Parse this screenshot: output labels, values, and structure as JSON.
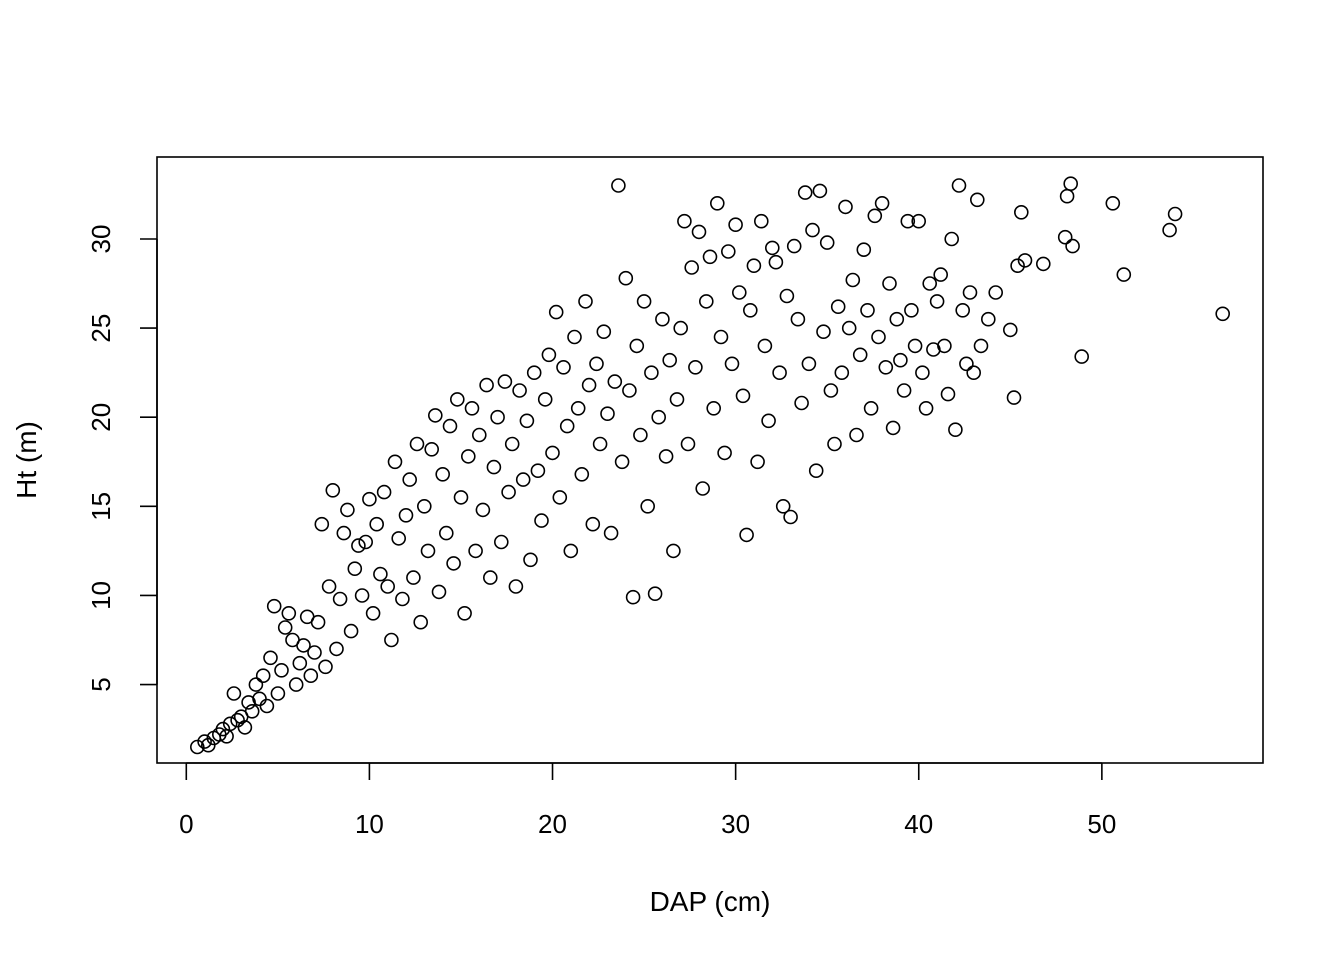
{
  "chart_data": {
    "type": "scatter",
    "title": "",
    "xlabel": "DAP (cm)",
    "ylabel": "Ht (m)",
    "xlim": [
      -1.6,
      58.8
    ],
    "ylim": [
      0.6,
      34.6
    ],
    "x_ticks": [
      0,
      10,
      20,
      30,
      40,
      50
    ],
    "y_ticks": [
      5,
      10,
      15,
      20,
      25,
      30
    ],
    "grid": false,
    "legend": "none",
    "marker": "open-circle",
    "color": "#000000",
    "points_note": "",
    "series": [
      {
        "points": [
          [
            0.6,
            1.5
          ],
          [
            1.0,
            1.8
          ],
          [
            1.2,
            1.6
          ],
          [
            1.5,
            2.0
          ],
          [
            1.8,
            2.2
          ],
          [
            2.0,
            2.5
          ],
          [
            2.2,
            2.1
          ],
          [
            2.4,
            2.8
          ],
          [
            2.6,
            4.5
          ],
          [
            2.8,
            3.0
          ],
          [
            3.0,
            3.2
          ],
          [
            3.2,
            2.6
          ],
          [
            3.4,
            4.0
          ],
          [
            3.6,
            3.5
          ],
          [
            3.8,
            5.0
          ],
          [
            4.0,
            4.2
          ],
          [
            4.2,
            5.5
          ],
          [
            4.4,
            3.8
          ],
          [
            4.6,
            6.5
          ],
          [
            4.8,
            9.4
          ],
          [
            5.0,
            4.5
          ],
          [
            5.2,
            5.8
          ],
          [
            5.4,
            8.2
          ],
          [
            5.6,
            9.0
          ],
          [
            5.8,
            7.5
          ],
          [
            6.0,
            5.0
          ],
          [
            6.2,
            6.2
          ],
          [
            6.4,
            7.2
          ],
          [
            6.6,
            8.8
          ],
          [
            6.8,
            5.5
          ],
          [
            7.0,
            6.8
          ],
          [
            7.2,
            8.5
          ],
          [
            7.4,
            14.0
          ],
          [
            7.6,
            6.0
          ],
          [
            7.8,
            10.5
          ],
          [
            8.0,
            15.9
          ],
          [
            8.2,
            7.0
          ],
          [
            8.4,
            9.8
          ],
          [
            8.6,
            13.5
          ],
          [
            8.8,
            14.8
          ],
          [
            9.0,
            8.0
          ],
          [
            9.2,
            11.5
          ],
          [
            9.4,
            12.8
          ],
          [
            9.6,
            10.0
          ],
          [
            9.8,
            13.0
          ],
          [
            10.0,
            15.4
          ],
          [
            10.2,
            9.0
          ],
          [
            10.4,
            14.0
          ],
          [
            10.6,
            11.2
          ],
          [
            10.8,
            15.8
          ],
          [
            11.0,
            10.5
          ],
          [
            11.2,
            7.5
          ],
          [
            11.4,
            17.5
          ],
          [
            11.6,
            13.2
          ],
          [
            11.8,
            9.8
          ],
          [
            12.0,
            14.5
          ],
          [
            12.2,
            16.5
          ],
          [
            12.4,
            11.0
          ],
          [
            12.6,
            18.5
          ],
          [
            12.8,
            8.5
          ],
          [
            13.0,
            15.0
          ],
          [
            13.2,
            12.5
          ],
          [
            13.4,
            18.2
          ],
          [
            13.6,
            20.1
          ],
          [
            13.8,
            10.2
          ],
          [
            14.0,
            16.8
          ],
          [
            14.2,
            13.5
          ],
          [
            14.4,
            19.5
          ],
          [
            14.6,
            11.8
          ],
          [
            14.8,
            21.0
          ],
          [
            15.0,
            15.5
          ],
          [
            15.2,
            9.0
          ],
          [
            15.4,
            17.8
          ],
          [
            15.6,
            20.5
          ],
          [
            15.8,
            12.5
          ],
          [
            16.0,
            19.0
          ],
          [
            16.2,
            14.8
          ],
          [
            16.4,
            21.8
          ],
          [
            16.6,
            11.0
          ],
          [
            16.8,
            17.2
          ],
          [
            17.0,
            20.0
          ],
          [
            17.2,
            13.0
          ],
          [
            17.4,
            22.0
          ],
          [
            17.6,
            15.8
          ],
          [
            17.8,
            18.5
          ],
          [
            18.0,
            10.5
          ],
          [
            18.2,
            21.5
          ],
          [
            18.4,
            16.5
          ],
          [
            18.6,
            19.8
          ],
          [
            18.8,
            12.0
          ],
          [
            19.0,
            22.5
          ],
          [
            19.2,
            17.0
          ],
          [
            19.4,
            14.2
          ],
          [
            19.6,
            21.0
          ],
          [
            19.8,
            23.5
          ],
          [
            20.0,
            18.0
          ],
          [
            20.2,
            25.9
          ],
          [
            20.4,
            15.5
          ],
          [
            20.6,
            22.8
          ],
          [
            20.8,
            19.5
          ],
          [
            21.0,
            12.5
          ],
          [
            21.2,
            24.5
          ],
          [
            21.4,
            20.5
          ],
          [
            21.6,
            16.8
          ],
          [
            21.8,
            26.5
          ],
          [
            22.0,
            21.8
          ],
          [
            22.2,
            14.0
          ],
          [
            22.4,
            23.0
          ],
          [
            22.6,
            18.5
          ],
          [
            22.8,
            24.8
          ],
          [
            23.0,
            20.2
          ],
          [
            23.2,
            13.5
          ],
          [
            23.4,
            22.0
          ],
          [
            23.6,
            33.0
          ],
          [
            23.8,
            17.5
          ],
          [
            24.0,
            27.8
          ],
          [
            24.2,
            21.5
          ],
          [
            24.4,
            9.9
          ],
          [
            24.6,
            24.0
          ],
          [
            24.8,
            19.0
          ],
          [
            25.0,
            26.5
          ],
          [
            25.2,
            15.0
          ],
          [
            25.4,
            22.5
          ],
          [
            25.6,
            10.1
          ],
          [
            25.8,
            20.0
          ],
          [
            26.0,
            25.5
          ],
          [
            26.2,
            17.8
          ],
          [
            26.4,
            23.2
          ],
          [
            26.6,
            12.5
          ],
          [
            26.8,
            21.0
          ],
          [
            27.0,
            25.0
          ],
          [
            27.2,
            31.0
          ],
          [
            27.4,
            18.5
          ],
          [
            27.6,
            28.4
          ],
          [
            27.8,
            22.8
          ],
          [
            28.0,
            30.4
          ],
          [
            28.2,
            16.0
          ],
          [
            28.4,
            26.5
          ],
          [
            28.6,
            29.0
          ],
          [
            28.8,
            20.5
          ],
          [
            29.0,
            32.0
          ],
          [
            29.2,
            24.5
          ],
          [
            29.4,
            18.0
          ],
          [
            29.6,
            29.3
          ],
          [
            29.8,
            23.0
          ],
          [
            30.0,
            30.8
          ],
          [
            30.2,
            27.0
          ],
          [
            30.4,
            21.2
          ],
          [
            30.6,
            13.4
          ],
          [
            30.8,
            26.0
          ],
          [
            31.0,
            28.5
          ],
          [
            31.2,
            17.5
          ],
          [
            31.4,
            31.0
          ],
          [
            31.6,
            24.0
          ],
          [
            31.8,
            19.8
          ],
          [
            32.0,
            29.5
          ],
          [
            32.2,
            28.7
          ],
          [
            32.4,
            22.5
          ],
          [
            32.6,
            15.0
          ],
          [
            32.8,
            26.8
          ],
          [
            33.0,
            14.4
          ],
          [
            33.2,
            29.6
          ],
          [
            33.4,
            25.5
          ],
          [
            33.6,
            20.8
          ],
          [
            33.8,
            32.6
          ],
          [
            34.0,
            23.0
          ],
          [
            34.2,
            30.5
          ],
          [
            34.4,
            17.0
          ],
          [
            34.6,
            32.7
          ],
          [
            34.8,
            24.8
          ],
          [
            35.0,
            29.8
          ],
          [
            35.2,
            21.5
          ],
          [
            35.4,
            18.5
          ],
          [
            35.6,
            26.2
          ],
          [
            35.8,
            22.5
          ],
          [
            36.0,
            31.8
          ],
          [
            36.2,
            25.0
          ],
          [
            36.4,
            27.7
          ],
          [
            36.6,
            19.0
          ],
          [
            36.8,
            23.5
          ],
          [
            37.0,
            29.4
          ],
          [
            37.2,
            26.0
          ],
          [
            37.4,
            20.5
          ],
          [
            37.6,
            31.3
          ],
          [
            37.8,
            24.5
          ],
          [
            38.0,
            32.0
          ],
          [
            38.2,
            22.8
          ],
          [
            38.4,
            27.5
          ],
          [
            38.6,
            19.4
          ],
          [
            38.8,
            25.5
          ],
          [
            39.0,
            23.2
          ],
          [
            39.2,
            21.5
          ],
          [
            39.4,
            31.0
          ],
          [
            39.6,
            26.0
          ],
          [
            39.8,
            24.0
          ],
          [
            40.0,
            31.0
          ],
          [
            40.2,
            22.5
          ],
          [
            40.4,
            20.5
          ],
          [
            40.6,
            27.5
          ],
          [
            40.8,
            23.8
          ],
          [
            41.0,
            26.5
          ],
          [
            41.2,
            28.0
          ],
          [
            41.4,
            24.0
          ],
          [
            41.6,
            21.3
          ],
          [
            41.8,
            30.0
          ],
          [
            42.0,
            19.3
          ],
          [
            42.2,
            33.0
          ],
          [
            42.4,
            26.0
          ],
          [
            42.6,
            23.0
          ],
          [
            42.8,
            27.0
          ],
          [
            43.0,
            22.5
          ],
          [
            43.2,
            32.2
          ],
          [
            43.4,
            24.0
          ],
          [
            43.8,
            25.5
          ],
          [
            44.2,
            27.0
          ],
          [
            45.0,
            24.9
          ],
          [
            45.2,
            21.1
          ],
          [
            45.4,
            28.5
          ],
          [
            45.6,
            31.5
          ],
          [
            45.8,
            28.8
          ],
          [
            46.8,
            28.6
          ],
          [
            48.0,
            30.1
          ],
          [
            48.1,
            32.4
          ],
          [
            48.3,
            33.1
          ],
          [
            48.4,
            29.6
          ],
          [
            48.9,
            23.4
          ],
          [
            50.6,
            32.0
          ],
          [
            51.2,
            28.0
          ],
          [
            53.7,
            30.5
          ],
          [
            54.0,
            31.4
          ],
          [
            56.6,
            25.8
          ]
        ]
      }
    ]
  }
}
